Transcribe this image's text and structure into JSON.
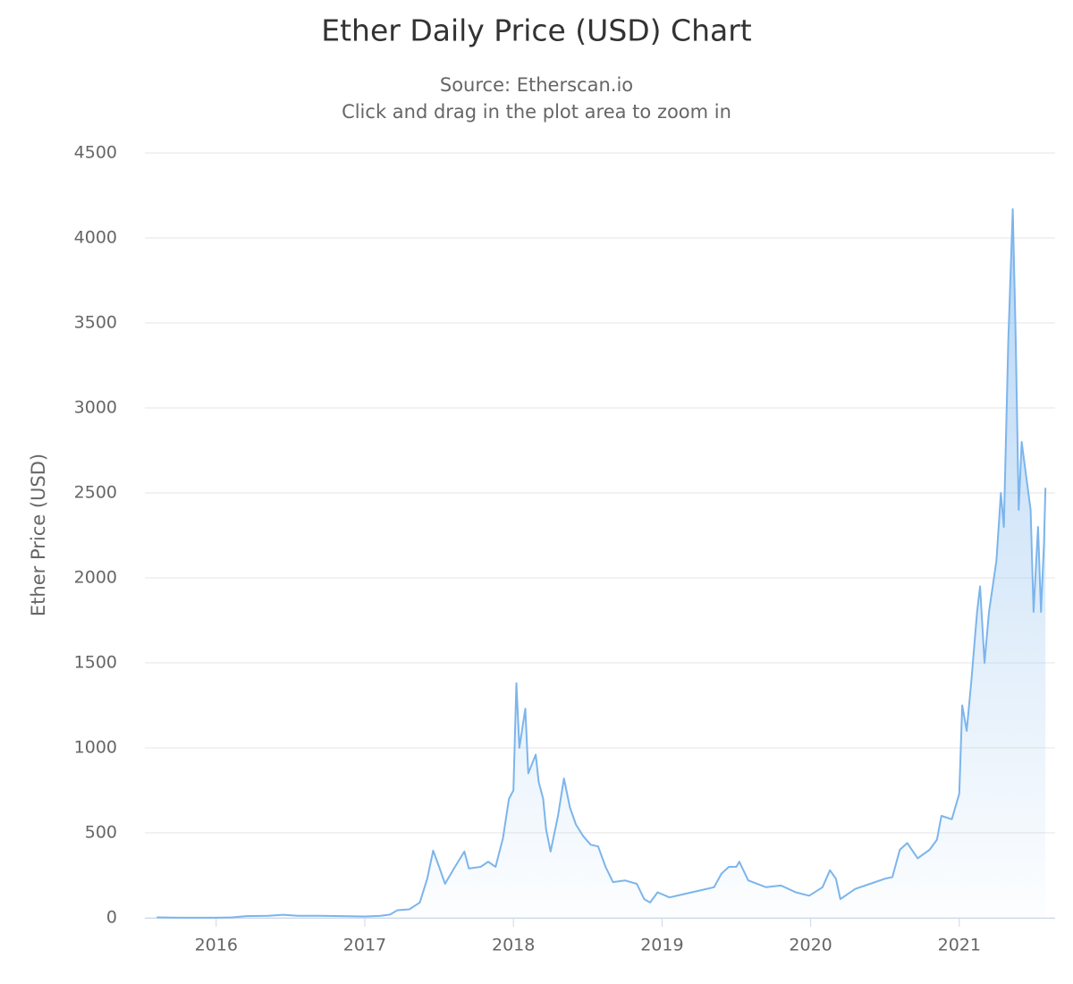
{
  "chart_data": {
    "type": "area",
    "title": "Ether Daily Price (USD) Chart",
    "subtitle": [
      "Source: Etherscan.io",
      "Click and drag in the plot area to zoom in"
    ],
    "y_label": "Ether Price (USD)",
    "color": "#7cb5ec",
    "grid": true,
    "xlim": [
      2015.52,
      2021.645
    ],
    "xticks": [
      2016,
      2017,
      2018,
      2019,
      2020,
      2021
    ],
    "ylim": [
      0,
      4500
    ],
    "yticks": [
      0,
      500,
      1000,
      1500,
      2000,
      2500,
      3000,
      3500,
      4000,
      4500
    ],
    "x": [
      2015.6,
      2015.75,
      2015.92,
      2016.0,
      2016.1,
      2016.2,
      2016.35,
      2016.45,
      2016.55,
      2016.7,
      2016.85,
      2017.0,
      2017.1,
      2017.17,
      2017.22,
      2017.3,
      2017.37,
      2017.42,
      2017.46,
      2017.5,
      2017.54,
      2017.6,
      2017.67,
      2017.7,
      2017.78,
      2017.83,
      2017.88,
      2017.93,
      2017.97,
      2018.0,
      2018.02,
      2018.04,
      2018.08,
      2018.1,
      2018.15,
      2018.17,
      2018.2,
      2018.22,
      2018.25,
      2018.3,
      2018.34,
      2018.38,
      2018.42,
      2018.47,
      2018.52,
      2018.57,
      2018.62,
      2018.67,
      2018.75,
      2018.83,
      2018.88,
      2018.92,
      2018.97,
      2019.05,
      2019.15,
      2019.25,
      2019.35,
      2019.4,
      2019.45,
      2019.5,
      2019.52,
      2019.58,
      2019.7,
      2019.8,
      2019.9,
      2019.99,
      2020.08,
      2020.13,
      2020.17,
      2020.2,
      2020.3,
      2020.4,
      2020.5,
      2020.55,
      2020.6,
      2020.65,
      2020.72,
      2020.8,
      2020.85,
      2020.88,
      2020.95,
      2021.0,
      2021.02,
      2021.05,
      2021.08,
      2021.12,
      2021.14,
      2021.17,
      2021.2,
      2021.25,
      2021.28,
      2021.3,
      2021.33,
      2021.36,
      2021.38,
      2021.4,
      2021.42,
      2021.45,
      2021.48,
      2021.5,
      2021.53,
      2021.55,
      2021.57,
      2021.58
    ],
    "values": [
      2.8,
      0.9,
      0.9,
      0.95,
      2,
      10,
      12,
      18,
      12,
      12,
      10,
      8,
      11,
      19,
      45,
      50,
      90,
      230,
      395,
      300,
      200,
      290,
      390,
      290,
      300,
      330,
      300,
      470,
      700,
      750,
      1380,
      1000,
      1230,
      850,
      960,
      800,
      700,
      520,
      390,
      600,
      820,
      650,
      550,
      480,
      430,
      420,
      300,
      210,
      220,
      200,
      110,
      90,
      150,
      120,
      140,
      160,
      180,
      260,
      300,
      300,
      330,
      220,
      180,
      190,
      150,
      130,
      180,
      280,
      230,
      110,
      170,
      200,
      230,
      240,
      400,
      440,
      350,
      400,
      460,
      600,
      580,
      730,
      1250,
      1100,
      1380,
      1800,
      1950,
      1500,
      1800,
      2100,
      2500,
      2300,
      3400,
      4170,
      3400,
      2400,
      2800,
      2600,
      2400,
      1800,
      2300,
      1800,
      2200,
      2530
    ]
  }
}
